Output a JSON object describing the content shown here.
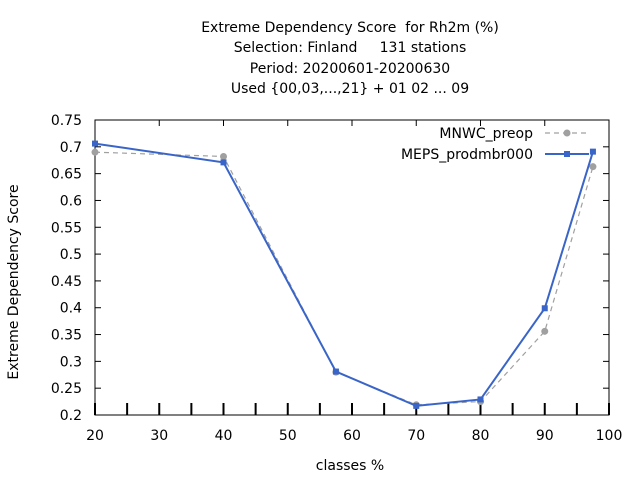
{
  "chart_data": {
    "type": "line",
    "title_lines": [
      "Extreme Dependency Score  for Rh2m (%)",
      "Selection: Finland     131 stations",
      "Period: 20200601-20200630",
      "Used {00,03,...,21} + 01 02 ... 09"
    ],
    "xlabel": "classes %",
    "ylabel": "Extreme Dependency Score",
    "xlim": [
      20,
      100
    ],
    "ylim": [
      0.2,
      0.75
    ],
    "xticks": [
      "20",
      "30",
      "40",
      "50",
      "60",
      "70",
      "80",
      "90",
      "100"
    ],
    "yticks": [
      "0.2",
      "0.25",
      "0.3",
      "0.35",
      "0.4",
      "0.45",
      "0.5",
      "0.55",
      "0.6",
      "0.65",
      "0.7",
      "0.75"
    ],
    "legend_position": "top-right",
    "series": [
      {
        "name": "MNWC_preop",
        "color": "#a0a0a0",
        "dash": true,
        "x": [
          20,
          40,
          57.5,
          70,
          80,
          90,
          97.5
        ],
        "y": [
          0.69,
          0.682,
          0.28,
          0.219,
          0.225,
          0.356,
          0.663
        ]
      },
      {
        "name": "MEPS_prodmbr000",
        "color": "#3a65c8",
        "dash": false,
        "x": [
          20,
          40,
          57.5,
          70,
          80,
          90,
          97.5
        ],
        "y": [
          0.706,
          0.671,
          0.281,
          0.217,
          0.229,
          0.399,
          0.691
        ]
      }
    ]
  }
}
